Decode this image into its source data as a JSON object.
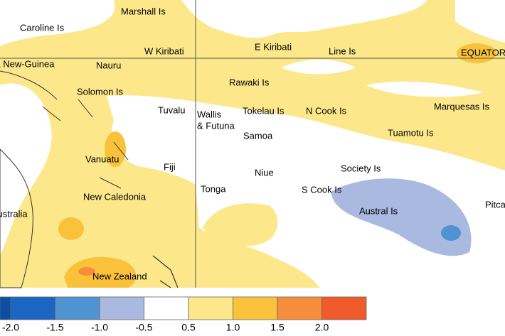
{
  "map": {
    "labels": [
      "Marshall Is",
      "Caroline Is",
      "W Kiribati",
      "E Kiribati",
      "Line Is",
      "EQUATOR",
      "Papua New-Guinea",
      "Nauru",
      "Rawaki Is",
      "Solomon Is",
      "Marquesas Is",
      "Tuvalu",
      "Wallis",
      "& Futuna",
      "Tokelau Is",
      "N Cook Is",
      "Samoa",
      "Tuamotu Is",
      "Vanuatu",
      "Fiji",
      "Niue",
      "Society Is",
      "S Cook Is",
      "Tonga",
      "New Caledonia",
      "Austral Is",
      "Australia",
      "Pitcairn",
      "New Zealand"
    ]
  },
  "legend": {
    "colors": [
      "#0b4ea2",
      "#1a66c2",
      "#4f93d2",
      "#aab9df",
      "#ffffff",
      "#fce78a",
      "#f9c23a",
      "#f58d3b",
      "#f15a2a"
    ],
    "ticks": [
      {
        "value": -2,
        "label": "-2.0"
      },
      -1.5,
      {
        "value": -1,
        "label": "-1.0"
      },
      -0.5,
      0.5,
      {
        "value": 1,
        "label": "1.0"
      },
      1.5,
      {
        "value": 2,
        "label": "2.0"
      }
    ]
  }
}
